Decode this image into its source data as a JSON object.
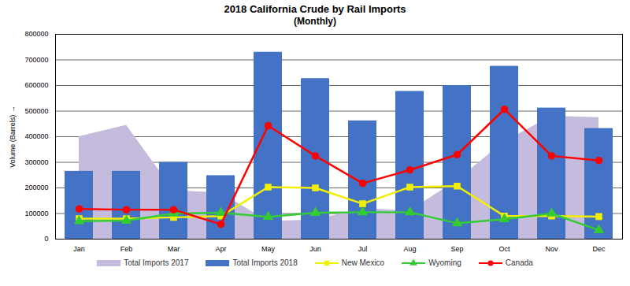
{
  "chart_data": {
    "type": "bar",
    "title": "2018 California Crude by Rail Imports",
    "subtitle": "(Monthly)",
    "y_label": "Volume (Barrels)",
    "categories": [
      "Jan",
      "Feb",
      "Mar",
      "Apr",
      "May",
      "Jun",
      "Jul",
      "Aug",
      "Sep",
      "Oct",
      "Nov",
      "Dec"
    ],
    "series": [
      {
        "name": "Total Imports 2017",
        "type": "area",
        "color": "#c4bbdd",
        "values": [
          400000,
          445000,
          190000,
          180000,
          70000,
          75000,
          120000,
          110000,
          230000,
          380000,
          480000,
          475000
        ]
      },
      {
        "name": "Total Imports 2018",
        "type": "bar",
        "color": "#4472c4",
        "values": [
          265000,
          265000,
          300000,
          248000,
          730000,
          627000,
          462000,
          577000,
          600000,
          675000,
          512000,
          432000
        ]
      },
      {
        "name": "New Mexico",
        "type": "line",
        "marker": "square",
        "color": "#f0f000",
        "values": [
          80000,
          80000,
          85000,
          90000,
          203000,
          200000,
          138000,
          203000,
          207000,
          90000,
          90000,
          88000
        ]
      },
      {
        "name": "Wyoming",
        "type": "line",
        "marker": "triangle",
        "color": "#33cc33",
        "values": [
          70000,
          72000,
          100000,
          103000,
          87000,
          103000,
          105000,
          105000,
          62000,
          78000,
          100000,
          35000
        ]
      },
      {
        "name": "Canada",
        "type": "line",
        "marker": "circle",
        "color": "#ff0000",
        "values": [
          118000,
          115000,
          115000,
          58000,
          443000,
          325000,
          218000,
          270000,
          330000,
          507000,
          325000,
          307000
        ]
      }
    ],
    "ylim": [
      0,
      800000
    ],
    "yticks": [
      0,
      100000,
      200000,
      300000,
      400000,
      500000,
      600000,
      700000,
      800000
    ],
    "grid": true,
    "legend": "bottom"
  }
}
